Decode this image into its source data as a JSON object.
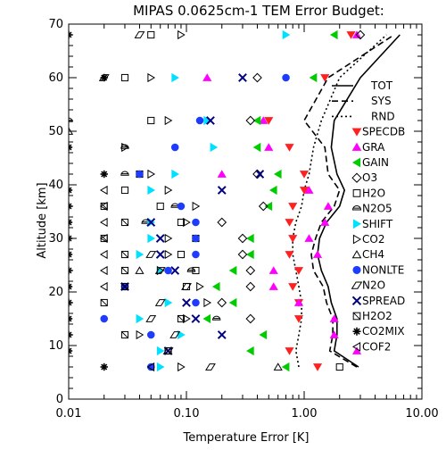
{
  "chart_data": {
    "type": "scatter",
    "title": "MIPAS 0.0625cm-1 TEM Error Budget:",
    "xlabel": "Temperature Error [K]",
    "ylabel": "Altitude [km]",
    "xscale": "log",
    "xlim": [
      0.01,
      10.0
    ],
    "ylim": [
      0,
      70
    ],
    "x_tick_labels": [
      "0.01",
      "0.10",
      "1.00",
      "10.00"
    ],
    "x_tick_values": [
      0.01,
      0.1,
      1.0,
      10.0
    ],
    "y_tick_labels": [
      "0",
      "10",
      "20",
      "30",
      "40",
      "50",
      "60",
      "70"
    ],
    "y_tick_values": [
      0,
      10,
      20,
      30,
      40,
      50,
      60,
      70
    ],
    "grid": false,
    "legend_position": "right",
    "altitudes": [
      6,
      9,
      12,
      15,
      18,
      21,
      24,
      27,
      30,
      33,
      36,
      39,
      42,
      47,
      52,
      60,
      68
    ],
    "series": [
      {
        "name": "TOT",
        "kind": "line",
        "style": "solid",
        "color": "#000000",
        "values": [
          2.9,
          1.8,
          1.9,
          1.9,
          1.7,
          1.6,
          1.4,
          1.3,
          1.35,
          1.55,
          2.0,
          2.2,
          1.9,
          1.7,
          1.8,
          3.0,
          6.5
        ]
      },
      {
        "name": "SYS",
        "kind": "line",
        "style": "dashed",
        "color": "#000000",
        "values": [
          2.8,
          1.65,
          1.75,
          1.75,
          1.55,
          1.45,
          1.2,
          1.15,
          1.25,
          1.4,
          1.8,
          2.0,
          1.6,
          1.5,
          1.0,
          1.6,
          5.8
        ]
      },
      {
        "name": "RND",
        "kind": "line",
        "style": "dotted",
        "color": "#000000",
        "values": [
          0.9,
          0.85,
          0.9,
          0.95,
          0.95,
          0.9,
          0.85,
          0.8,
          0.8,
          0.85,
          0.95,
          1.0,
          1.1,
          1.2,
          1.4,
          2.0,
          5.0
        ]
      },
      {
        "name": "SPECDB",
        "marker": "triangle-down",
        "color": "#ff2020",
        "filled": true,
        "points": [
          [
            1.3,
            6
          ],
          [
            0.75,
            9
          ],
          [
            0.9,
            15
          ],
          [
            0.9,
            18
          ],
          [
            0.8,
            21
          ],
          [
            0.9,
            24
          ],
          [
            0.75,
            27
          ],
          [
            0.8,
            30
          ],
          [
            0.75,
            33
          ],
          [
            0.8,
            36
          ],
          [
            1.0,
            39
          ],
          [
            1.0,
            42
          ],
          [
            0.75,
            47
          ],
          [
            0.5,
            52
          ],
          [
            1.5,
            60
          ],
          [
            2.5,
            68
          ]
        ]
      },
      {
        "name": "GRA",
        "marker": "triangle-up",
        "color": "#ff00ff",
        "filled": true,
        "points": [
          [
            2.8,
            9
          ],
          [
            1.8,
            12
          ],
          [
            1.8,
            15
          ],
          [
            0.9,
            18
          ],
          [
            0.55,
            21
          ],
          [
            0.55,
            24
          ],
          [
            1.3,
            27
          ],
          [
            1.1,
            30
          ],
          [
            1.5,
            33
          ],
          [
            1.6,
            36
          ],
          [
            1.1,
            39
          ],
          [
            0.2,
            42
          ],
          [
            0.5,
            47
          ],
          [
            0.45,
            52
          ],
          [
            0.15,
            60
          ],
          [
            2.8,
            68
          ]
        ]
      },
      {
        "name": "GAIN",
        "marker": "triangle-left",
        "color": "#00cc00",
        "filled": true,
        "points": [
          [
            0.7,
            6
          ],
          [
            0.35,
            9
          ],
          [
            0.45,
            12
          ],
          [
            0.15,
            15
          ],
          [
            0.25,
            18
          ],
          [
            0.18,
            21
          ],
          [
            0.25,
            24
          ],
          [
            0.35,
            27
          ],
          [
            0.35,
            30
          ],
          [
            0.5,
            36
          ],
          [
            0.55,
            39
          ],
          [
            0.6,
            42
          ],
          [
            0.4,
            47
          ],
          [
            0.4,
            52
          ],
          [
            1.2,
            60
          ],
          [
            1.8,
            68
          ]
        ]
      },
      {
        "name": "O3",
        "marker": "diamond",
        "color": "#000000",
        "filled": false,
        "points": [
          [
            0.35,
            15
          ],
          [
            0.2,
            18
          ],
          [
            0.35,
            21
          ],
          [
            0.35,
            24
          ],
          [
            0.3,
            27
          ],
          [
            0.3,
            30
          ],
          [
            0.2,
            33
          ],
          [
            0.45,
            36
          ],
          [
            0.4,
            42
          ],
          [
            0.35,
            52
          ],
          [
            0.4,
            60
          ],
          [
            3.0,
            68
          ]
        ]
      },
      {
        "name": "H2O",
        "marker": "square",
        "color": "#000000",
        "filled": false,
        "points": [
          [
            2.0,
            6
          ],
          [
            0.1,
            21
          ],
          [
            0.12,
            24
          ],
          [
            0.09,
            27
          ],
          [
            0.12,
            30
          ],
          [
            0.09,
            33
          ],
          [
            0.06,
            36
          ],
          [
            0.03,
            39
          ],
          [
            0.04,
            42
          ],
          [
            0.05,
            52
          ],
          [
            0.03,
            60
          ],
          [
            0.05,
            68
          ]
        ]
      },
      {
        "name": "N2O5",
        "marker": "half-circle",
        "color": "#000000",
        "filled": false,
        "points": [
          [
            0.18,
            15
          ],
          [
            0.11,
            24
          ],
          [
            0.045,
            33
          ],
          [
            0.08,
            36
          ],
          [
            0.03,
            42
          ],
          [
            0.03,
            47
          ],
          [
            0.01,
            52
          ]
        ]
      },
      {
        "name": "SHIFT",
        "marker": "triangle-right",
        "color": "#00e0ff",
        "filled": true,
        "points": [
          [
            0.06,
            6
          ],
          [
            0.06,
            9
          ],
          [
            0.09,
            12
          ],
          [
            0.04,
            15
          ],
          [
            0.07,
            18
          ],
          [
            0.03,
            21
          ],
          [
            0.06,
            24
          ],
          [
            0.04,
            27
          ],
          [
            0.05,
            30
          ],
          [
            0.05,
            33
          ],
          [
            0.05,
            39
          ],
          [
            0.08,
            42
          ],
          [
            0.17,
            47
          ],
          [
            0.15,
            52
          ],
          [
            0.08,
            60
          ],
          [
            0.7,
            68
          ]
        ]
      },
      {
        "name": "CO2",
        "marker": "triangle-right",
        "color": "#000000",
        "filled": false,
        "points": [
          [
            0.09,
            6
          ],
          [
            0.04,
            12
          ],
          [
            0.1,
            15
          ],
          [
            0.15,
            18
          ],
          [
            0.13,
            21
          ],
          [
            0.06,
            24
          ],
          [
            0.07,
            27
          ],
          [
            0.07,
            30
          ],
          [
            0.1,
            33
          ],
          [
            0.12,
            36
          ],
          [
            0.07,
            39
          ],
          [
            0.05,
            42
          ],
          [
            0.03,
            47
          ],
          [
            0.07,
            52
          ],
          [
            0.05,
            60
          ],
          [
            0.09,
            68
          ]
        ]
      },
      {
        "name": "CH4",
        "marker": "triangle-up",
        "color": "#000000",
        "filled": false,
        "points": [
          [
            0.6,
            6
          ],
          [
            0.04,
            24
          ],
          [
            0.01,
            50
          ]
        ]
      },
      {
        "name": "NONLTE",
        "marker": "circle",
        "color": "#1e3cff",
        "filled": true,
        "points": [
          [
            0.05,
            6
          ],
          [
            0.05,
            12
          ],
          [
            0.02,
            15
          ],
          [
            0.12,
            18
          ],
          [
            0.03,
            21
          ],
          [
            0.07,
            24
          ],
          [
            0.12,
            27
          ],
          [
            0.12,
            30
          ],
          [
            0.12,
            33
          ],
          [
            0.09,
            36
          ],
          [
            0.04,
            42
          ],
          [
            0.08,
            47
          ],
          [
            0.13,
            52
          ],
          [
            0.7,
            60
          ]
        ]
      },
      {
        "name": "N2O",
        "marker": "parallelogram",
        "color": "#000000",
        "filled": false,
        "points": [
          [
            0.16,
            6
          ],
          [
            0.07,
            9
          ],
          [
            0.08,
            12
          ],
          [
            0.05,
            15
          ],
          [
            0.06,
            18
          ],
          [
            0.1,
            21
          ],
          [
            0.06,
            24
          ],
          [
            0.05,
            27
          ],
          [
            0.02,
            60
          ],
          [
            0.04,
            68
          ]
        ]
      },
      {
        "name": "SPREAD",
        "marker": "x",
        "color": "#000080",
        "filled": false,
        "points": [
          [
            0.07,
            9
          ],
          [
            0.2,
            12
          ],
          [
            0.12,
            15
          ],
          [
            0.1,
            18
          ],
          [
            0.03,
            21
          ],
          [
            0.08,
            24
          ],
          [
            0.06,
            27
          ],
          [
            0.06,
            30
          ],
          [
            0.05,
            33
          ],
          [
            0.2,
            39
          ],
          [
            0.42,
            42
          ],
          [
            0.16,
            52
          ],
          [
            0.3,
            60
          ]
        ]
      },
      {
        "name": "H2O2",
        "marker": "slash-box",
        "color": "#000000",
        "filled": false,
        "points": [
          [
            0.07,
            9
          ],
          [
            0.03,
            12
          ],
          [
            0.02,
            18
          ],
          [
            0.03,
            21
          ],
          [
            0.03,
            24
          ],
          [
            0.03,
            27
          ],
          [
            0.02,
            30
          ],
          [
            0.03,
            33
          ],
          [
            0.02,
            36
          ],
          [
            0.09,
            15
          ]
        ]
      },
      {
        "name": "CO2MIX",
        "marker": "asterisk",
        "color": "#000000",
        "filled": false,
        "points": [
          [
            0.02,
            6
          ],
          [
            0.01,
            9
          ],
          [
            0.01,
            12
          ],
          [
            0.01,
            15
          ],
          [
            0.01,
            18
          ],
          [
            0.01,
            21
          ],
          [
            0.01,
            24
          ],
          [
            0.01,
            27
          ],
          [
            0.01,
            30
          ],
          [
            0.01,
            33
          ],
          [
            0.01,
            36
          ],
          [
            0.01,
            39
          ],
          [
            0.02,
            42
          ],
          [
            0.01,
            47
          ],
          [
            0.02,
            60
          ],
          [
            0.01,
            68
          ]
        ]
      },
      {
        "name": "COF2",
        "marker": "triangle-left-outline",
        "color": "#000000",
        "filled": false,
        "points": [
          [
            0.05,
            6
          ],
          [
            0.02,
            27
          ],
          [
            0.02,
            30
          ],
          [
            0.02,
            33
          ],
          [
            0.02,
            36
          ],
          [
            0.02,
            39
          ],
          [
            0.02,
            24
          ],
          [
            0.02,
            21
          ]
        ]
      }
    ],
    "legend": [
      {
        "label": "TOT",
        "key": "TOT"
      },
      {
        "label": "SYS",
        "key": "SYS"
      },
      {
        "label": "RND",
        "key": "RND"
      },
      {
        "label": "SPECDB",
        "key": "SPECDB"
      },
      {
        "label": "GRA",
        "key": "GRA"
      },
      {
        "label": "GAIN",
        "key": "GAIN"
      },
      {
        "label": "O3",
        "key": "O3"
      },
      {
        "label": "H2O",
        "key": "H2O"
      },
      {
        "label": "N2O5",
        "key": "N2O5"
      },
      {
        "label": "SHIFT",
        "key": "SHIFT"
      },
      {
        "label": "CO2",
        "key": "CO2"
      },
      {
        "label": "CH4",
        "key": "CH4"
      },
      {
        "label": "NONLTE",
        "key": "NONLTE"
      },
      {
        "label": "N2O",
        "key": "N2O"
      },
      {
        "label": "SPREAD",
        "key": "SPREAD"
      },
      {
        "label": "H2O2",
        "key": "H2O2"
      },
      {
        "label": "CO2MIX",
        "key": "CO2MIX"
      },
      {
        "label": "COF2",
        "key": "COF2"
      }
    ]
  }
}
